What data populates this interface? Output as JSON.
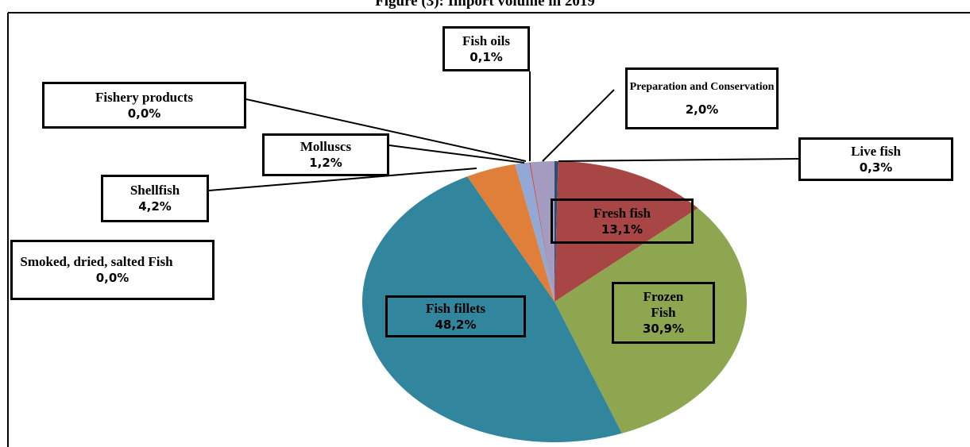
{
  "chart_data": {
    "type": "pie",
    "title": "Figure (3): Import volume in 2019",
    "categories": [
      "Live fish",
      "Fresh fish",
      "Frozen Fish",
      "Fish fillets",
      "Smoked, dried, salted Fish",
      "Shellfish",
      "Molluscs",
      "Fishery products",
      "Fish oils",
      "Preparation and Conservation"
    ],
    "values": [
      0.3,
      13.1,
      30.9,
      48.2,
      0.0,
      4.2,
      1.2,
      0.0,
      0.1,
      2.0
    ],
    "value_labels": [
      "0,3%",
      "13,1%",
      "30,9%",
      "48,2%",
      "0,0%",
      "4,2%",
      "1,2%",
      "0,0%",
      "0,1%",
      "2,0%"
    ],
    "colors": [
      "#2c4d75",
      "#a84545",
      "#8ea64f",
      "#31859c",
      "#4f81bd",
      "#e07f3a",
      "#93a9d5",
      "#b9cde5",
      "#c0504d",
      "#a49bc0"
    ]
  }
}
